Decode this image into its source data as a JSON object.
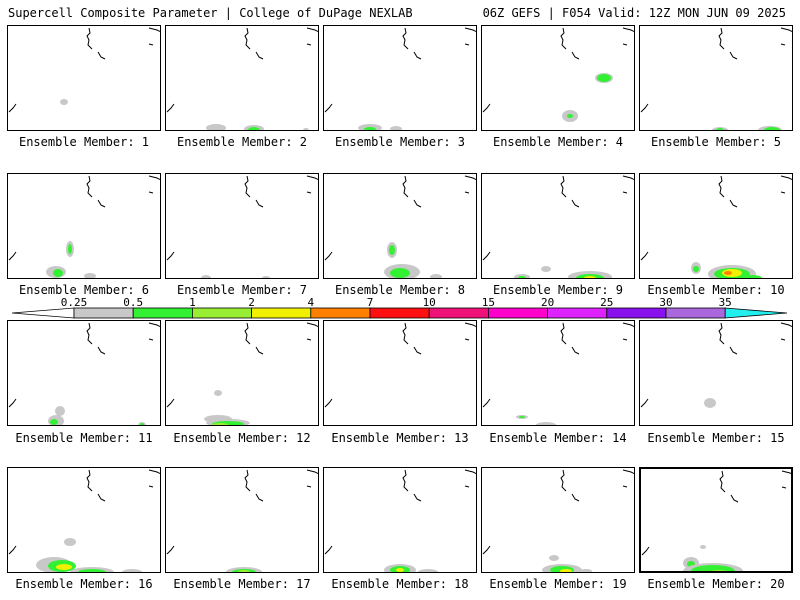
{
  "header": {
    "left": "Supercell Composite Parameter | College of DuPage NEXLAB",
    "right": "06Z GEFS | F054 Valid: 12Z MON JUN 09 2025"
  },
  "colorbar": {
    "labels": [
      "0.25",
      "0.5",
      "1",
      "2",
      "4",
      "7",
      "10",
      "15",
      "20",
      "25",
      "30",
      "35"
    ],
    "colors": [
      "#ffffff",
      "#c8c8c8",
      "#33f033",
      "#99ee33",
      "#f0f000",
      "#ff7f00",
      "#ff1010",
      "#ee1177",
      "#ff00cc",
      "#dd22ff",
      "#8811ee",
      "#aa66dd",
      "#22eeee"
    ]
  },
  "panels": [
    {
      "label": "Ensemble Member: 1"
    },
    {
      "label": "Ensemble Member: 2"
    },
    {
      "label": "Ensemble Member: 3"
    },
    {
      "label": "Ensemble Member: 4"
    },
    {
      "label": "Ensemble Member: 5"
    },
    {
      "label": "Ensemble Member: 6"
    },
    {
      "label": "Ensemble Member: 7"
    },
    {
      "label": "Ensemble Member: 8"
    },
    {
      "label": "Ensemble Member: 9"
    },
    {
      "label": "Ensemble Member: 10"
    },
    {
      "label": "Ensemble Member: 11"
    },
    {
      "label": "Ensemble Member: 12"
    },
    {
      "label": "Ensemble Member: 13"
    },
    {
      "label": "Ensemble Member: 14"
    },
    {
      "label": "Ensemble Member: 15"
    },
    {
      "label": "Ensemble Member: 16"
    },
    {
      "label": "Ensemble Member: 17"
    },
    {
      "label": "Ensemble Member: 18"
    },
    {
      "label": "Ensemble Member: 19"
    },
    {
      "label": "Ensemble Member: 20",
      "selected": true
    }
  ]
}
